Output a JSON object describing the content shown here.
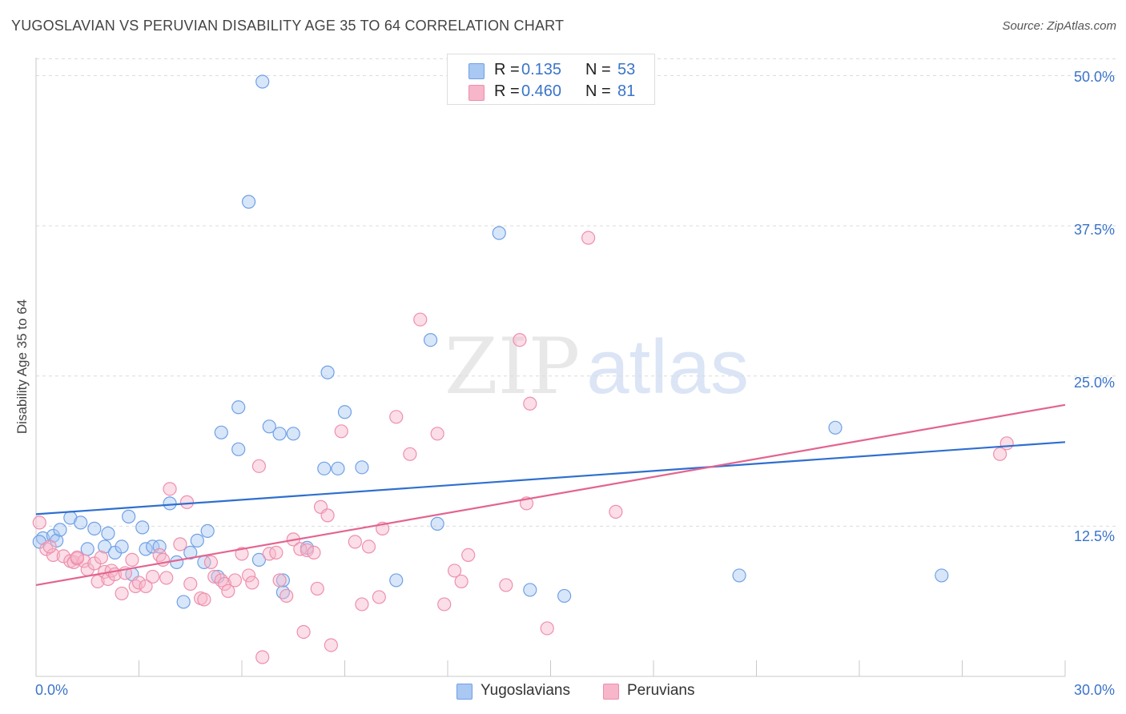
{
  "title": "YUGOSLAVIAN VS PERUVIAN DISABILITY AGE 35 TO 64 CORRELATION CHART",
  "source": "Source: ZipAtlas.com",
  "watermark": {
    "zip": "ZIP",
    "atlas": "atlas"
  },
  "stats": {
    "rows": [
      {
        "r_label": "R =",
        "r_value": "0.135",
        "n_label": "N =",
        "n_value": "53",
        "color": "#a9c8f2"
      },
      {
        "r_label": "R =",
        "r_value": "0.460",
        "n_label": "N =",
        "n_value": "81",
        "color": "#f7b6ca"
      }
    ]
  },
  "legend": {
    "items": [
      {
        "label": "Yugoslavians",
        "color": "#a9c8f2"
      },
      {
        "label": "Peruvians",
        "color": "#f7b6ca"
      }
    ]
  },
  "chart_data": {
    "type": "scatter",
    "title": "YUGOSLAVIAN VS PERUVIAN DISABILITY AGE 35 TO 64 CORRELATION CHART",
    "xlabel": "",
    "ylabel": "Disability Age 35 to 64",
    "xlim": [
      0,
      30
    ],
    "ylim": [
      0,
      51.5
    ],
    "x_tick_labels": [
      "0.0%",
      "30.0%"
    ],
    "y_tick_labels": [
      "12.5%",
      "25.0%",
      "37.5%",
      "50.0%"
    ],
    "y_ticks": [
      12.5,
      25,
      37.5,
      50
    ],
    "grid": "horizontal dashed",
    "legend_position": "bottom-center",
    "series": [
      {
        "name": "Yugoslavians",
        "color": "#6fa0e6",
        "fill": "#a9c8f2",
        "trend": {
          "x": [
            0,
            30
          ],
          "y": [
            13.5,
            19.5
          ],
          "color": "#2f6fcf"
        },
        "points": [
          [
            0.2,
            11.5
          ],
          [
            0.5,
            11.7
          ],
          [
            0.6,
            11.3
          ],
          [
            0.7,
            12.2
          ],
          [
            1.0,
            13.2
          ],
          [
            1.3,
            12.8
          ],
          [
            1.5,
            10.6
          ],
          [
            1.7,
            12.3
          ],
          [
            2.0,
            10.8
          ],
          [
            2.1,
            11.9
          ],
          [
            2.3,
            10.3
          ],
          [
            2.5,
            10.8
          ],
          [
            2.7,
            13.3
          ],
          [
            2.8,
            8.5
          ],
          [
            3.1,
            12.4
          ],
          [
            3.2,
            10.6
          ],
          [
            3.4,
            10.8
          ],
          [
            3.6,
            10.8
          ],
          [
            3.9,
            14.4
          ],
          [
            4.1,
            9.5
          ],
          [
            4.3,
            6.2
          ],
          [
            4.5,
            10.3
          ],
          [
            4.7,
            11.3
          ],
          [
            4.9,
            9.5
          ],
          [
            5.0,
            12.1
          ],
          [
            5.3,
            8.3
          ],
          [
            5.4,
            20.3
          ],
          [
            5.9,
            22.4
          ],
          [
            5.9,
            18.9
          ],
          [
            6.2,
            39.5
          ],
          [
            6.5,
            9.7
          ],
          [
            6.6,
            49.5
          ],
          [
            6.8,
            20.8
          ],
          [
            7.1,
            20.2
          ],
          [
            7.2,
            7.0
          ],
          [
            7.2,
            8.0
          ],
          [
            7.5,
            20.2
          ],
          [
            7.9,
            10.7
          ],
          [
            8.4,
            17.3
          ],
          [
            8.5,
            25.3
          ],
          [
            8.8,
            17.3
          ],
          [
            9.0,
            22.0
          ],
          [
            9.5,
            17.4
          ],
          [
            10.5,
            8.0
          ],
          [
            11.5,
            28.0
          ],
          [
            11.7,
            12.7
          ],
          [
            13.5,
            36.9
          ],
          [
            14.4,
            7.2
          ],
          [
            15.4,
            6.7
          ],
          [
            20.5,
            8.4
          ],
          [
            23.3,
            20.7
          ],
          [
            26.4,
            8.4
          ],
          [
            0.1,
            11.2
          ]
        ]
      },
      {
        "name": "Peruvians",
        "color": "#ee8fac",
        "fill": "#f7b6ca",
        "trend": {
          "x": [
            0,
            30
          ],
          "y": [
            7.6,
            22.6
          ],
          "color": "#e3648f"
        },
        "points": [
          [
            0.1,
            12.8
          ],
          [
            0.3,
            10.6
          ],
          [
            0.5,
            10.1
          ],
          [
            0.8,
            10.0
          ],
          [
            1.0,
            9.6
          ],
          [
            1.1,
            9.5
          ],
          [
            1.2,
            9.8
          ],
          [
            1.4,
            9.6
          ],
          [
            1.5,
            8.9
          ],
          [
            1.7,
            9.4
          ],
          [
            1.8,
            7.9
          ],
          [
            1.9,
            9.9
          ],
          [
            2.0,
            8.7
          ],
          [
            2.1,
            8.1
          ],
          [
            2.2,
            8.8
          ],
          [
            2.3,
            8.5
          ],
          [
            2.5,
            6.9
          ],
          [
            2.6,
            8.6
          ],
          [
            2.8,
            9.7
          ],
          [
            2.9,
            7.5
          ],
          [
            3.0,
            7.8
          ],
          [
            3.2,
            7.5
          ],
          [
            3.4,
            8.3
          ],
          [
            3.6,
            10.1
          ],
          [
            3.7,
            9.7
          ],
          [
            3.8,
            8.2
          ],
          [
            3.9,
            15.6
          ],
          [
            4.2,
            11.0
          ],
          [
            4.4,
            14.5
          ],
          [
            4.5,
            7.7
          ],
          [
            4.8,
            6.5
          ],
          [
            4.9,
            6.4
          ],
          [
            5.1,
            9.5
          ],
          [
            5.2,
            8.3
          ],
          [
            5.4,
            8.0
          ],
          [
            5.5,
            7.7
          ],
          [
            5.6,
            7.1
          ],
          [
            5.8,
            8.0
          ],
          [
            6.0,
            10.2
          ],
          [
            6.2,
            8.4
          ],
          [
            6.3,
            7.8
          ],
          [
            6.5,
            17.5
          ],
          [
            6.6,
            1.6
          ],
          [
            6.8,
            10.2
          ],
          [
            7.0,
            10.3
          ],
          [
            7.1,
            8.0
          ],
          [
            7.3,
            6.7
          ],
          [
            7.5,
            11.4
          ],
          [
            7.7,
            10.6
          ],
          [
            7.8,
            3.7
          ],
          [
            7.9,
            10.5
          ],
          [
            8.1,
            10.3
          ],
          [
            8.2,
            7.3
          ],
          [
            8.3,
            14.1
          ],
          [
            8.5,
            13.4
          ],
          [
            8.6,
            2.6
          ],
          [
            8.9,
            20.4
          ],
          [
            9.3,
            11.2
          ],
          [
            9.5,
            6.0
          ],
          [
            9.7,
            10.8
          ],
          [
            10.0,
            6.6
          ],
          [
            10.1,
            12.3
          ],
          [
            10.5,
            21.6
          ],
          [
            10.9,
            18.5
          ],
          [
            11.2,
            29.7
          ],
          [
            11.7,
            20.2
          ],
          [
            11.9,
            6.0
          ],
          [
            12.2,
            8.8
          ],
          [
            12.4,
            7.9
          ],
          [
            12.6,
            10.1
          ],
          [
            14.1,
            28.0
          ],
          [
            14.3,
            14.4
          ],
          [
            14.4,
            22.7
          ],
          [
            14.9,
            4.0
          ],
          [
            16.1,
            36.5
          ],
          [
            16.9,
            13.7
          ],
          [
            28.1,
            18.5
          ],
          [
            28.3,
            19.4
          ],
          [
            0.4,
            10.8
          ],
          [
            1.2,
            9.9
          ],
          [
            13.7,
            7.6
          ]
        ]
      }
    ]
  }
}
